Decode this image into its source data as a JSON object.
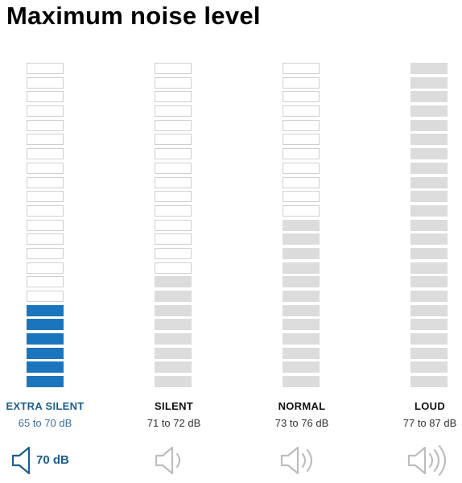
{
  "title": "Maximum noise level",
  "levels": [
    {
      "label": "EXTRA SILENT",
      "range": "65 to 70 dB",
      "filled_bars": 6,
      "total_bars": 23,
      "fill_color": "#1b75bc",
      "active": true,
      "db_value": "70 dB",
      "speaker_waves": 0
    },
    {
      "label": "SILENT",
      "range": "71 to 72 dB",
      "filled_bars": 8,
      "total_bars": 23,
      "fill_color": "#dcdcdc",
      "active": false,
      "speaker_waves": 1
    },
    {
      "label": "NORMAL",
      "range": "73 to 76 dB",
      "filled_bars": 12,
      "total_bars": 23,
      "fill_color": "#dcdcdc",
      "active": false,
      "speaker_waves": 2
    },
    {
      "label": "LOUD",
      "range": "77 to 87 dB",
      "filled_bars": 23,
      "total_bars": 23,
      "fill_color": "#dcdcdc",
      "active": false,
      "speaker_waves": 3
    }
  ],
  "colors": {
    "accent": "#1b75bc",
    "inactive": "#dcdcdc",
    "outline": "#cfcfcf"
  },
  "icons": [
    "speaker-icon"
  ]
}
